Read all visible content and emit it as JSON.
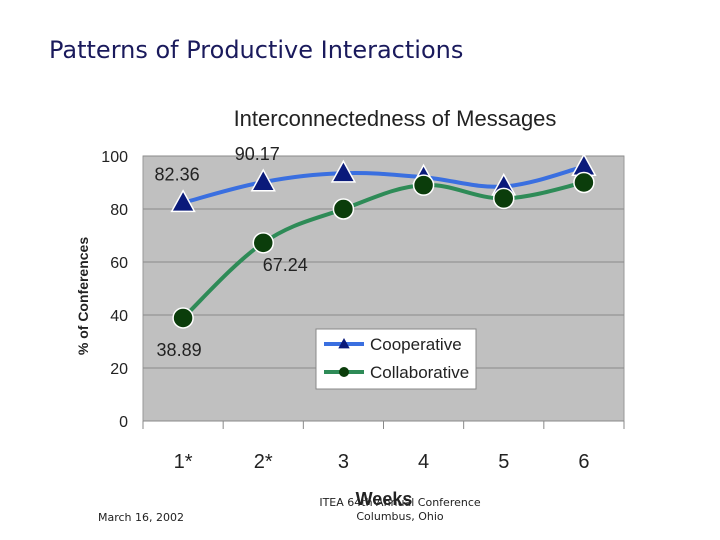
{
  "slide": {
    "title": "Patterns of Productive Interactions",
    "footer_date": "March 16, 2002",
    "footer_conference_line1": "ITEA 64th Annual Conference",
    "footer_conference_line2": "Columbus, Ohio"
  },
  "chart_data": {
    "type": "line",
    "title": "Interconnectedness of Messages",
    "xlabel": "Weeks",
    "ylabel": "% of Conferences",
    "categories": [
      "1*",
      "2*",
      "3",
      "4",
      "5",
      "6"
    ],
    "ylim": [
      0,
      100
    ],
    "yticks": [
      0,
      20,
      40,
      60,
      80,
      100
    ],
    "grid": true,
    "legend_position": "center-right",
    "plot_background": "#c0c0c0",
    "series": [
      {
        "name": "Cooperative",
        "marker": "triangle",
        "color": "#3a6fe0",
        "marker_color": "#0a1a7a",
        "values": [
          82.36,
          90.17,
          93.5,
          92,
          88.5,
          96
        ]
      },
      {
        "name": "Collaborative",
        "marker": "circle",
        "color": "#2e8b57",
        "marker_color": "#0b3d0b",
        "values": [
          38.89,
          67.24,
          80,
          89,
          84,
          90
        ]
      }
    ],
    "data_labels": [
      {
        "text": "82.36",
        "series": 0,
        "index": 0
      },
      {
        "text": "90.17",
        "series": 0,
        "index": 1
      },
      {
        "text": "67.24",
        "series": 1,
        "index": 1
      },
      {
        "text": "38.89",
        "series": 1,
        "index": 0
      }
    ]
  }
}
